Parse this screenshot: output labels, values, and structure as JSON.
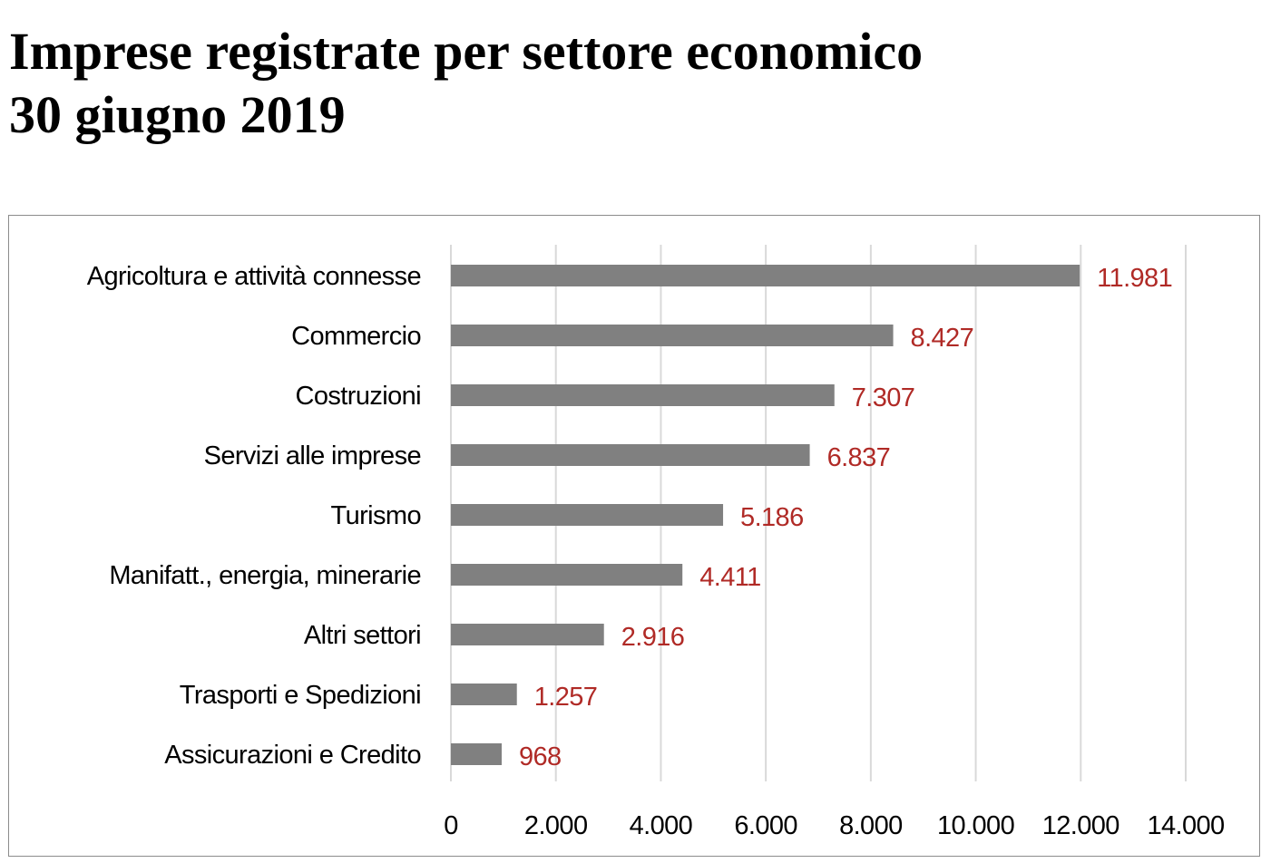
{
  "title": {
    "line1": "Imprese registrate per settore economico",
    "line2": "30 giugno 2019"
  },
  "chart_data": {
    "type": "bar",
    "orientation": "horizontal",
    "categories": [
      "Agricoltura e attività connesse",
      "Commercio",
      "Costruzioni",
      "Servizi alle imprese",
      "Turismo",
      "Manifatt., energia, minerarie",
      "Altri settori",
      "Trasporti e Spedizioni",
      "Assicurazioni e Credito"
    ],
    "values": [
      11981,
      8427,
      7307,
      6837,
      5186,
      4411,
      2916,
      1257,
      968
    ],
    "value_labels": [
      "11.981",
      "8.427",
      "7.307",
      "6.837",
      "5.186",
      "4.411",
      "2.916",
      "1.257",
      "968"
    ],
    "xlim": [
      0,
      14000
    ],
    "x_ticks": [
      0,
      2000,
      4000,
      6000,
      8000,
      10000,
      12000,
      14000
    ],
    "x_tick_labels": [
      "0",
      "2.000",
      "4.000",
      "6.000",
      "8.000",
      "10.000",
      "12.000",
      "14.000"
    ],
    "xlabel": "",
    "ylabel": "",
    "grid": "vertical",
    "legend": "none",
    "colors": {
      "bar": "#808080",
      "data_label": "#b02a26",
      "grid": "#d9d9d9",
      "frame": "#8c8c8c"
    }
  }
}
